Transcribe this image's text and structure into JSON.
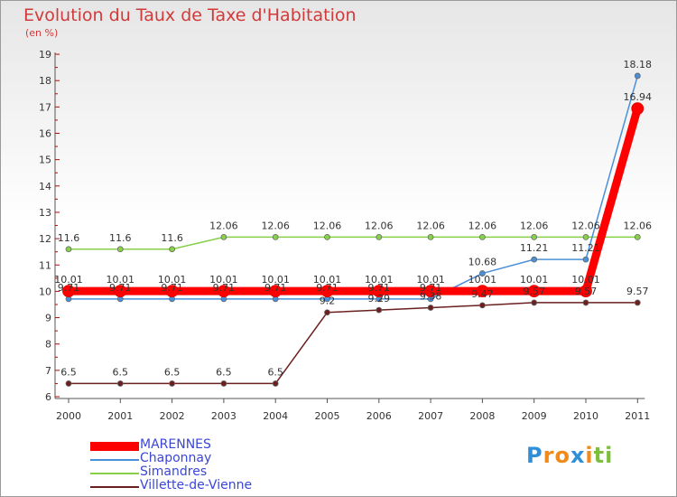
{
  "chart_data": {
    "type": "line",
    "title": "Evolution du Taux de Taxe d'Habitation",
    "unit_label": "(en %)",
    "x": [
      2000,
      2001,
      2002,
      2003,
      2004,
      2005,
      2006,
      2007,
      2008,
      2009,
      2010,
      2011
    ],
    "ylim": [
      6,
      19
    ],
    "yticks": [
      6,
      7,
      8,
      9,
      10,
      11,
      12,
      13,
      14,
      15,
      16,
      17,
      18,
      19
    ],
    "grid": false,
    "legend_position": "bottom-left",
    "series": [
      {
        "name": "Simandres",
        "color": "#88d04a",
        "values": [
          11.6,
          11.6,
          11.6,
          12.06,
          12.06,
          12.06,
          12.06,
          12.06,
          12.06,
          12.06,
          12.06,
          12.06
        ],
        "labels": [
          "11.6",
          "11.6",
          "11.6",
          "12.06",
          "12.06",
          "12.06",
          "12.06",
          "12.06",
          "12.06",
          "12.06",
          "12.06",
          "12.06"
        ]
      },
      {
        "name": "Villette-de-Vienne",
        "color": "#6b1f1f",
        "values": [
          6.5,
          6.5,
          6.5,
          6.5,
          6.5,
          9.2,
          9.29,
          9.38,
          9.47,
          9.57,
          9.57,
          9.57
        ],
        "labels": [
          "6.5",
          "6.5",
          "6.5",
          "6.5",
          "6.5",
          "9.2",
          "9.29",
          "9.38",
          "9.47",
          "9.57",
          "9.57",
          "9.57"
        ]
      },
      {
        "name": "Chaponnay",
        "color": "#4a90d9",
        "values": [
          9.71,
          9.71,
          9.71,
          9.71,
          9.71,
          9.71,
          9.71,
          9.71,
          10.68,
          11.21,
          11.21,
          18.18
        ],
        "labels": [
          "9.71",
          "9.71",
          "9.71",
          "9.71",
          "9.71",
          "9.71",
          "9.71",
          "9.71",
          "10.68",
          "11.21",
          "11.21",
          "18.18"
        ]
      },
      {
        "name": "MARENNES",
        "color": "#ff0000",
        "values": [
          10.01,
          10.01,
          10.01,
          10.01,
          10.01,
          10.01,
          10.01,
          10.01,
          10.01,
          10.01,
          10.01,
          16.94
        ],
        "labels": [
          "10.01",
          "10.01",
          "10.01",
          "10.01",
          "10.01",
          "10.01",
          "10.01",
          "10.01",
          "10.01",
          "10.01",
          "10.01",
          "16.94"
        ]
      }
    ],
    "legend": [
      "MARENNES",
      "Chaponnay",
      "Simandres",
      "Villette-de-Vienne"
    ]
  },
  "logo": {
    "letters": [
      "P",
      "r",
      "o",
      "x",
      "i",
      "t",
      "i"
    ],
    "colors": [
      "#2f8fd8",
      "#f08a1a",
      "#f08a1a",
      "#2f8fd8",
      "#f08a1a",
      "#7cbf3a",
      "#7cbf3a"
    ]
  }
}
